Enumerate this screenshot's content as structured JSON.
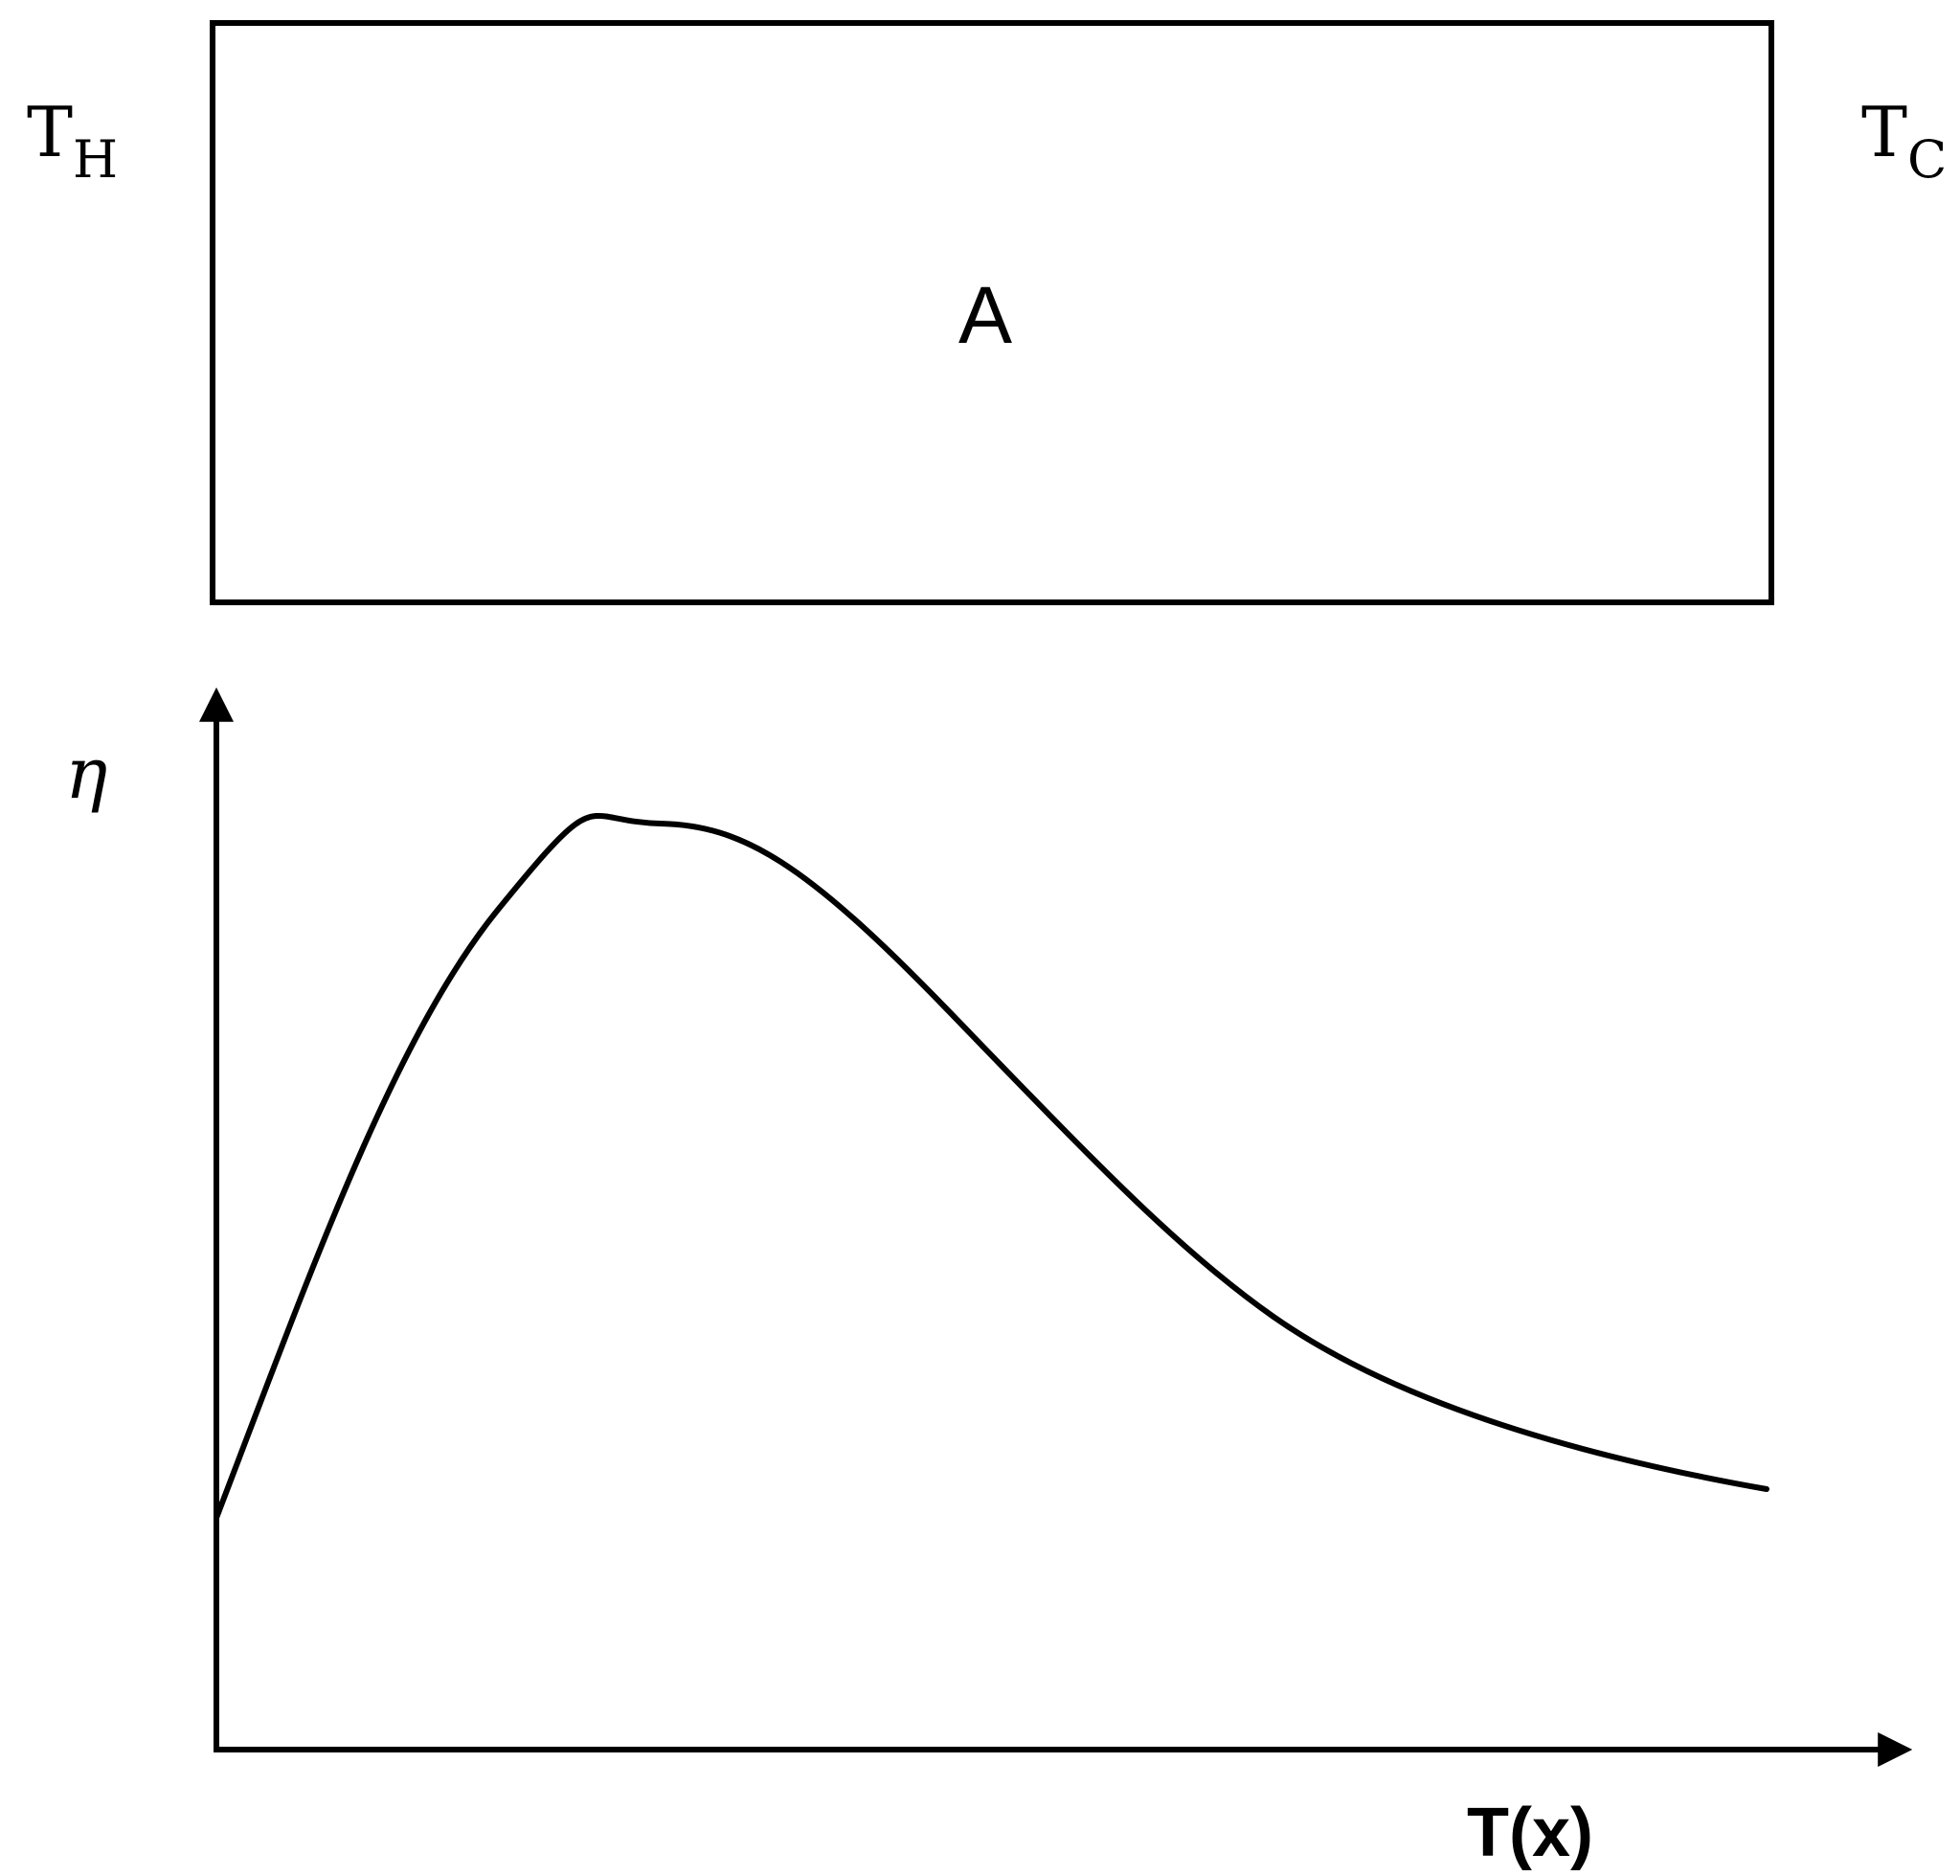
{
  "bar": {
    "left_label_main": "T",
    "left_label_sub": "H",
    "right_label_main": "T",
    "right_label_sub": "C",
    "center_label": "A"
  },
  "graph": {
    "y_axis_label": "η",
    "x_axis_label": "T(x)"
  },
  "colors": {
    "stroke": "#000000",
    "background": "#ffffff"
  }
}
